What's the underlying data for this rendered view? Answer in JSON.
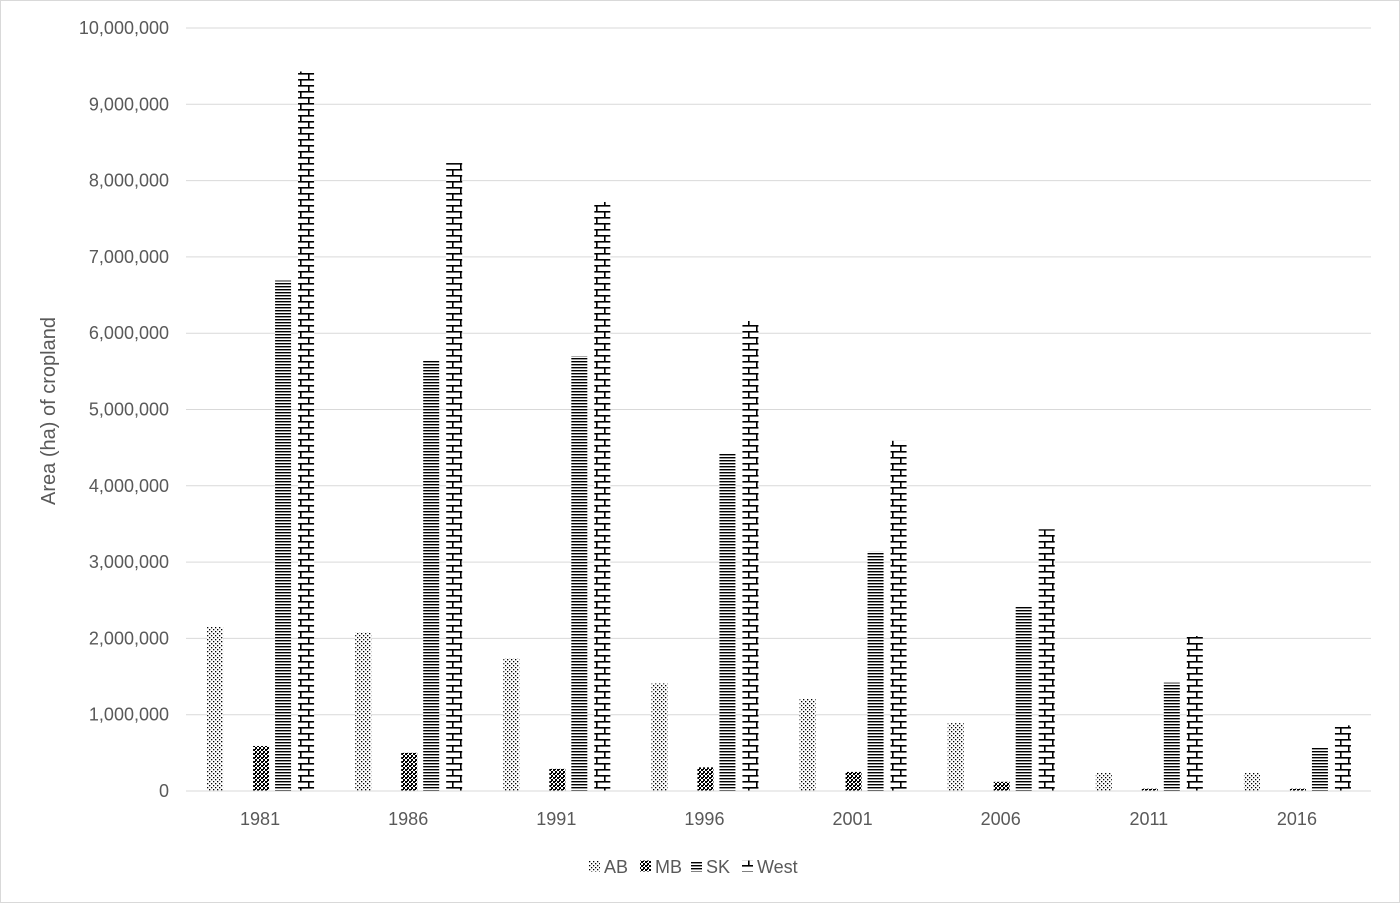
{
  "chart_data": {
    "type": "bar",
    "title": "",
    "xlabel": "",
    "ylabel": "Area (ha) of cropland",
    "ylim": [
      0,
      10000000
    ],
    "yticks": [
      0,
      1000000,
      2000000,
      3000000,
      4000000,
      5000000,
      6000000,
      7000000,
      8000000,
      9000000,
      10000000
    ],
    "ytick_labels": [
      "0",
      "1,000,000",
      "2,000,000",
      "3,000,000",
      "4,000,000",
      "5,000,000",
      "6,000,000",
      "7,000,000",
      "8,000,000",
      "9,000,000",
      "10,000,000"
    ],
    "categories": [
      "1981",
      "1986",
      "1991",
      "1996",
      "2001",
      "2006",
      "2011",
      "2016"
    ],
    "grid": "horizontal",
    "legend_position": "bottom",
    "series": [
      {
        "name": "AB",
        "pattern": "dots",
        "values": [
          2150000,
          2080000,
          1740000,
          1410000,
          1210000,
          890000,
          240000,
          240000
        ]
      },
      {
        "name": "MB",
        "pattern": "checker",
        "values": [
          590000,
          500000,
          290000,
          310000,
          250000,
          120000,
          30000,
          30000
        ]
      },
      {
        "name": "SK",
        "pattern": "hlines",
        "values": [
          6690000,
          5650000,
          5700000,
          4420000,
          3140000,
          2420000,
          1420000,
          570000
        ]
      },
      {
        "name": "West",
        "pattern": "brick",
        "values": [
          9430000,
          8230000,
          7720000,
          6160000,
          4590000,
          3430000,
          2030000,
          860000
        ]
      }
    ],
    "colors": {
      "bar_ink": "#000000",
      "grid": "#d9d9d9",
      "text": "#595959",
      "border": "#d9d9d9"
    }
  }
}
